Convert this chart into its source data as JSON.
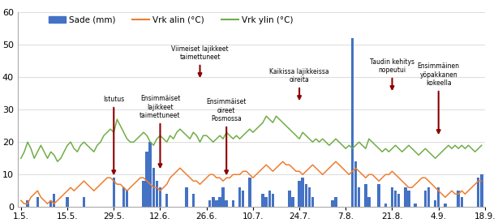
{
  "legend": [
    "Sade (mm)",
    "Vrk alin (°C)",
    "Vrk ylin (°C)"
  ],
  "bar_color": "#4472C4",
  "line_alin_color": "#ED7D31",
  "line_ylin_color": "#70AD47",
  "ylim": [
    0,
    60
  ],
  "yticks": [
    0,
    10,
    20,
    30,
    40,
    50,
    60
  ],
  "xtick_labels": [
    "1.5.",
    "15.5.",
    "29.5.",
    "12.6.",
    "26.6.",
    "10.7.",
    "24.7.",
    "7.8.",
    "21.8.",
    "4.9.",
    "18.9."
  ],
  "background_color": "#FFFFFF",
  "grid_color": "#DCDCDC",
  "sade": [
    0,
    0,
    2,
    0,
    0,
    3,
    0,
    0,
    0,
    2,
    4,
    0,
    0,
    0,
    3,
    0,
    0,
    0,
    0,
    3,
    0,
    0,
    0,
    0,
    0,
    0,
    0,
    0,
    9,
    0,
    0,
    6,
    5,
    0,
    0,
    0,
    0,
    8,
    17,
    20,
    12,
    8,
    6,
    0,
    4,
    0,
    0,
    0,
    0,
    0,
    6,
    0,
    4,
    0,
    0,
    0,
    0,
    2,
    3,
    2,
    3,
    6,
    2,
    0,
    2,
    0,
    6,
    5,
    0,
    9,
    0,
    0,
    0,
    4,
    3,
    5,
    4,
    0,
    0,
    0,
    0,
    5,
    3,
    0,
    8,
    9,
    7,
    6,
    3,
    0,
    0,
    0,
    0,
    0,
    2,
    3,
    0,
    0,
    0,
    0,
    52,
    14,
    6,
    0,
    7,
    3,
    0,
    0,
    7,
    0,
    1,
    0,
    6,
    5,
    4,
    0,
    6,
    5,
    0,
    1,
    0,
    0,
    5,
    6,
    0,
    2,
    6,
    0,
    1,
    0,
    0,
    0,
    5,
    3,
    0,
    0,
    0,
    0,
    9,
    10
  ],
  "vrk_alin": [
    2,
    1,
    1,
    3,
    4,
    5,
    3,
    2,
    1,
    2,
    1,
    2,
    3,
    4,
    5,
    6,
    5,
    6,
    7,
    8,
    7,
    6,
    5,
    6,
    7,
    8,
    9,
    9,
    8,
    7,
    7,
    6,
    5,
    6,
    7,
    8,
    9,
    9,
    8,
    7,
    6,
    6,
    5,
    6,
    7,
    9,
    10,
    11,
    12,
    11,
    10,
    9,
    8,
    8,
    7,
    8,
    9,
    10,
    10,
    9,
    9,
    8,
    9,
    9,
    10,
    10,
    10,
    11,
    11,
    10,
    9,
    10,
    11,
    12,
    13,
    12,
    11,
    12,
    13,
    14,
    13,
    13,
    12,
    11,
    11,
    10,
    11,
    12,
    13,
    12,
    11,
    10,
    11,
    12,
    13,
    14,
    13,
    12,
    11,
    10,
    11,
    12,
    11,
    10,
    9,
    10,
    10,
    9,
    8,
    9,
    10,
    10,
    11,
    10,
    9,
    8,
    7,
    6,
    6,
    7,
    8,
    9,
    9,
    8,
    7,
    6,
    5,
    4,
    3,
    4,
    5,
    4,
    4,
    5,
    4,
    5,
    6,
    7,
    8,
    8
  ],
  "vrk_ylin": [
    15,
    17,
    20,
    18,
    15,
    17,
    19,
    17,
    15,
    17,
    16,
    14,
    15,
    17,
    19,
    20,
    18,
    17,
    19,
    20,
    19,
    18,
    17,
    19,
    20,
    22,
    23,
    24,
    23,
    27,
    25,
    23,
    21,
    20,
    20,
    21,
    22,
    23,
    22,
    20,
    19,
    21,
    22,
    21,
    20,
    22,
    21,
    23,
    24,
    23,
    22,
    21,
    23,
    22,
    20,
    22,
    22,
    21,
    20,
    21,
    22,
    21,
    23,
    22,
    21,
    22,
    21,
    22,
    23,
    24,
    23,
    24,
    25,
    26,
    28,
    27,
    26,
    28,
    27,
    26,
    25,
    24,
    23,
    22,
    21,
    23,
    22,
    21,
    20,
    21,
    20,
    21,
    20,
    19,
    20,
    21,
    20,
    19,
    18,
    19,
    18,
    19,
    20,
    19,
    18,
    21,
    20,
    19,
    18,
    17,
    18,
    17,
    18,
    19,
    18,
    17,
    18,
    19,
    18,
    17,
    16,
    17,
    18,
    17,
    16,
    15,
    16,
    17,
    18,
    19,
    18,
    19,
    18,
    19,
    18,
    19,
    18,
    17,
    18,
    19
  ]
}
